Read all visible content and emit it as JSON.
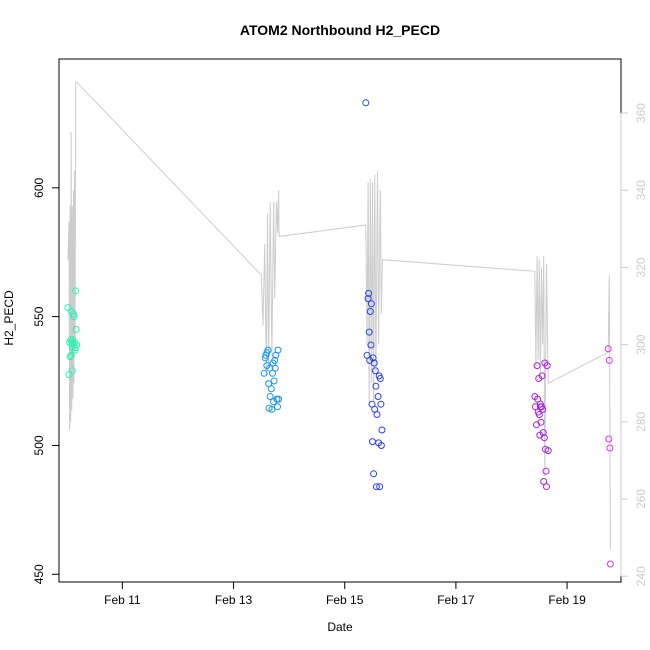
{
  "chart_data": {
    "type": "scatter",
    "title": "ATOM2 Northbound H2_PECD",
    "xlabel": "Date",
    "ylabel": "H2_PECD",
    "xlim": [
      9.86,
      19.97
    ],
    "ylim": [
      447,
      650
    ],
    "y_ticks": [
      450,
      500,
      550,
      600
    ],
    "x_ticks": [
      {
        "value": 11,
        "label": "Feb 11"
      },
      {
        "value": 13,
        "label": "Feb 13"
      },
      {
        "value": 15,
        "label": "Feb 15"
      },
      {
        "value": 17,
        "label": "Feb 17"
      },
      {
        "value": 19,
        "label": "Feb 19"
      }
    ],
    "y2lim": [
      238.5,
      374
    ],
    "y2_ticks": [
      240,
      260,
      280,
      300,
      320,
      340,
      360
    ],
    "grid": false,
    "legend": "none",
    "colors": {
      "trace": "#cccccc",
      "right_axis": "#cccccc",
      "axis": "#000000",
      "point_scale": [
        "#2df5aa",
        "#17dce6",
        "#1550f0",
        "#6b14e0",
        "#e632e6"
      ]
    },
    "series": [
      {
        "marker": "open-circle",
        "color_by": "x",
        "points": [
          [
            10.02,
            553.5
          ],
          [
            10.04,
            527.5
          ],
          [
            10.05,
            540
          ],
          [
            10.06,
            534.5
          ],
          [
            10.07,
            541
          ],
          [
            10.08,
            552
          ],
          [
            10.08,
            535
          ],
          [
            10.09,
            540
          ],
          [
            10.1,
            538
          ],
          [
            10.1,
            529
          ],
          [
            10.11,
            541
          ],
          [
            10.12,
            539
          ],
          [
            10.13,
            550
          ],
          [
            10.14,
            540
          ],
          [
            10.15,
            538
          ],
          [
            10.15,
            537
          ],
          [
            10.16,
            560
          ],
          [
            10.17,
            545
          ],
          [
            10.18,
            539
          ],
          [
            10.12,
            551
          ],
          [
            13.55,
            528
          ],
          [
            13.57,
            534
          ],
          [
            13.58,
            535
          ],
          [
            13.6,
            531
          ],
          [
            13.6,
            536
          ],
          [
            13.62,
            537
          ],
          [
            13.63,
            524
          ],
          [
            13.64,
            514.5
          ],
          [
            13.65,
            530
          ],
          [
            13.66,
            519
          ],
          [
            13.68,
            522
          ],
          [
            13.69,
            514
          ],
          [
            13.7,
            528
          ],
          [
            13.71,
            532
          ],
          [
            13.72,
            517
          ],
          [
            13.73,
            525
          ],
          [
            13.74,
            533
          ],
          [
            13.75,
            530
          ],
          [
            13.76,
            535
          ],
          [
            13.78,
            518
          ],
          [
            13.79,
            515
          ],
          [
            13.8,
            537
          ],
          [
            13.81,
            518
          ],
          [
            15.38,
            633
          ],
          [
            15.4,
            535
          ],
          [
            15.42,
            557
          ],
          [
            15.43,
            559
          ],
          [
            15.44,
            544
          ],
          [
            15.45,
            533
          ],
          [
            15.46,
            552
          ],
          [
            15.47,
            539
          ],
          [
            15.48,
            555
          ],
          [
            15.49,
            516
          ],
          [
            15.5,
            501.5
          ],
          [
            15.51,
            534
          ],
          [
            15.52,
            489
          ],
          [
            15.53,
            532
          ],
          [
            15.54,
            514
          ],
          [
            15.55,
            529
          ],
          [
            15.56,
            523
          ],
          [
            15.57,
            484
          ],
          [
            15.58,
            512
          ],
          [
            15.6,
            519
          ],
          [
            15.61,
            501
          ],
          [
            15.62,
            527
          ],
          [
            15.63,
            484
          ],
          [
            15.64,
            526
          ],
          [
            15.65,
            516
          ],
          [
            15.66,
            500
          ],
          [
            15.67,
            506
          ],
          [
            18.42,
            519
          ],
          [
            18.43,
            515
          ],
          [
            18.45,
            508
          ],
          [
            18.46,
            531
          ],
          [
            18.47,
            518
          ],
          [
            18.48,
            513
          ],
          [
            18.49,
            526
          ],
          [
            18.5,
            512
          ],
          [
            18.51,
            504
          ],
          [
            18.52,
            516
          ],
          [
            18.53,
            509
          ],
          [
            18.54,
            515
          ],
          [
            18.55,
            527
          ],
          [
            18.56,
            514
          ],
          [
            18.57,
            505
          ],
          [
            18.58,
            486
          ],
          [
            18.59,
            503
          ],
          [
            18.6,
            532
          ],
          [
            18.61,
            498.5
          ],
          [
            18.62,
            490
          ],
          [
            18.63,
            484
          ],
          [
            18.64,
            531
          ],
          [
            18.66,
            498
          ],
          [
            18.52,
            515
          ],
          [
            19.74,
            537.5
          ],
          [
            19.75,
            502.5
          ],
          [
            19.76,
            533
          ],
          [
            19.77,
            499
          ],
          [
            19.78,
            454
          ]
        ]
      },
      {
        "name_hidden": true,
        "role": "secondary-axis-trace",
        "axis": "right",
        "line": [
          [
            10.02,
            322
          ],
          [
            10.04,
            332
          ],
          [
            10.05,
            278
          ],
          [
            10.06,
            336
          ],
          [
            10.07,
            280
          ],
          [
            10.08,
            355
          ],
          [
            10.09,
            283
          ],
          [
            10.1,
            336
          ],
          [
            10.11,
            286
          ],
          [
            10.12,
            340
          ],
          [
            10.13,
            290
          ],
          [
            10.14,
            345
          ],
          [
            10.15,
            300
          ],
          [
            10.16,
            368
          ],
          [
            10.18,
            368
          ],
          [
            13.5,
            318
          ],
          [
            13.53,
            305
          ],
          [
            13.56,
            326
          ],
          [
            13.59,
            292
          ],
          [
            13.61,
            334
          ],
          [
            13.63,
            294
          ],
          [
            13.66,
            337
          ],
          [
            13.69,
            297
          ],
          [
            13.72,
            337
          ],
          [
            13.74,
            312
          ],
          [
            13.77,
            337
          ],
          [
            13.79,
            329
          ],
          [
            13.81,
            340
          ],
          [
            13.82,
            328
          ],
          [
            15.38,
            331
          ],
          [
            15.4,
            300
          ],
          [
            15.42,
            342
          ],
          [
            15.44,
            285
          ],
          [
            15.46,
            343
          ],
          [
            15.48,
            290
          ],
          [
            15.5,
            342
          ],
          [
            15.52,
            285
          ],
          [
            15.54,
            344
          ],
          [
            15.56,
            293
          ],
          [
            15.59,
            345
          ],
          [
            15.61,
            300
          ],
          [
            15.64,
            340
          ],
          [
            15.66,
            308
          ],
          [
            15.68,
            322
          ],
          [
            18.42,
            319
          ],
          [
            18.44,
            294
          ],
          [
            18.46,
            323
          ],
          [
            18.48,
            296
          ],
          [
            18.5,
            322
          ],
          [
            18.52,
            292
          ],
          [
            18.54,
            320
          ],
          [
            18.56,
            300
          ],
          [
            18.58,
            323
          ],
          [
            18.6,
            266
          ],
          [
            18.63,
            321
          ],
          [
            18.66,
            290
          ],
          [
            19.74,
            298
          ],
          [
            19.76,
            318
          ],
          [
            19.78,
            247
          ]
        ]
      }
    ]
  }
}
